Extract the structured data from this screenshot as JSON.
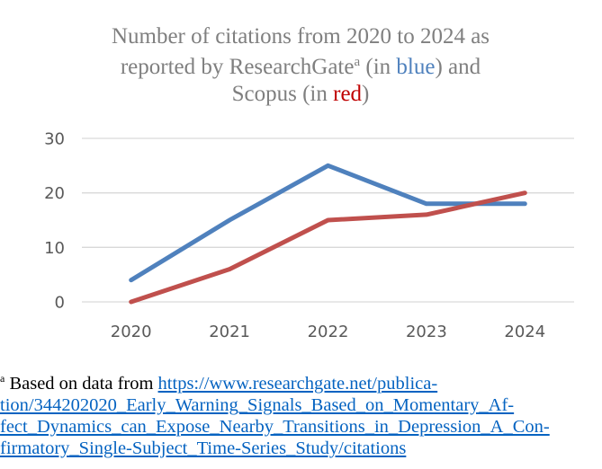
{
  "chart_data": {
    "type": "line",
    "title": {
      "line1": "Number of citations from 2020 to 2024 as",
      "line2_a": "reported by ResearchGate",
      "line2_sup": "a",
      "line2_b": " (in ",
      "line2_blue": "blue",
      "line2_c": ") and",
      "line3_a": "Scopus (in ",
      "line3_red": "red",
      "line3_b": ")"
    },
    "categories": [
      "2020",
      "2021",
      "2022",
      "2023",
      "2024"
    ],
    "yticks": [
      "0",
      "10",
      "20",
      "30"
    ],
    "ylim": [
      0,
      30
    ],
    "grid": true,
    "series": [
      {
        "name": "ResearchGate",
        "color": "#4f81bd",
        "values": [
          4,
          15,
          25,
          18,
          18
        ]
      },
      {
        "name": "Scopus",
        "color": "#c0504d",
        "values": [
          0,
          6,
          15,
          16,
          20
        ]
      }
    ]
  },
  "footnote": {
    "marker": "a",
    "text": " Based on data from ",
    "link_line1": "https://www.researchgate.net/publica-",
    "link_line2": "tion/344202020_Early_Warning_Signals_Based_on_Momentary_Af-",
    "link_line3": "fect_Dynamics_can_Expose_Nearby_Transitions_in_Depression_A_Con-",
    "link_line4": "firmatory_Single-Subject_Time-Series_Study/citations"
  },
  "colors": {
    "blue_word": "#4f81bd",
    "red_word": "#c00000",
    "link": "#0563c1",
    "grid": "#d9d9d9"
  }
}
